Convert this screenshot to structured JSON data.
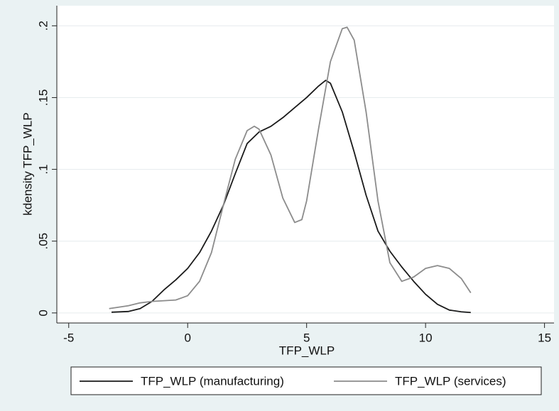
{
  "chart_data": {
    "type": "line",
    "x_label": "TFP_WLP",
    "y_label": "kdensity TFP_WLP",
    "xlim": [
      -5.5,
      15.4
    ],
    "ylim": [
      -0.007,
      0.214
    ],
    "xticks": [
      -5,
      0,
      5,
      10,
      15
    ],
    "yticks": [
      0,
      {
        "value": 0.05,
        "label": ".05"
      },
      {
        "value": 0.1,
        "label": ".1"
      },
      {
        "value": 0.15,
        "label": ".15"
      },
      {
        "value": 0.2,
        "label": ".2"
      }
    ],
    "grid": true,
    "legend": "bottom",
    "series": [
      {
        "name": "TFP_WLP (manufacturing)",
        "color": "#1a1a1a",
        "x": [
          -3.2,
          -2.5,
          -2,
          -1.5,
          -1,
          -0.5,
          0,
          0.5,
          1,
          1.5,
          2,
          2.5,
          3,
          3.5,
          4,
          4.5,
          5,
          5.5,
          5.8,
          6,
          6.5,
          7,
          7.5,
          8,
          8.5,
          9,
          9.5,
          10,
          10.5,
          11,
          11.5,
          11.9
        ],
        "values": [
          0.0005,
          0.001,
          0.003,
          0.008,
          0.016,
          0.023,
          0.031,
          0.042,
          0.057,
          0.075,
          0.097,
          0.118,
          0.126,
          0.13,
          0.136,
          0.143,
          0.15,
          0.158,
          0.162,
          0.16,
          0.14,
          0.112,
          0.082,
          0.057,
          0.043,
          0.032,
          0.022,
          0.013,
          0.006,
          0.002,
          0.0008,
          0.0003
        ]
      },
      {
        "name": "TFP_WLP (services)",
        "color": "#8c8c8c",
        "x": [
          -3.3,
          -2.5,
          -2,
          -1.5,
          -1,
          -0.5,
          0,
          0.5,
          1,
          1.5,
          2,
          2.5,
          2.8,
          3,
          3.5,
          4,
          4.5,
          4.8,
          5,
          5.5,
          6,
          6.5,
          6.7,
          7,
          7.5,
          8,
          8.5,
          9,
          9.5,
          10,
          10.5,
          11,
          11.5,
          11.9
        ],
        "values": [
          0.003,
          0.005,
          0.007,
          0.008,
          0.0085,
          0.009,
          0.012,
          0.022,
          0.042,
          0.075,
          0.107,
          0.127,
          0.13,
          0.128,
          0.11,
          0.08,
          0.063,
          0.065,
          0.078,
          0.128,
          0.175,
          0.198,
          0.199,
          0.19,
          0.14,
          0.078,
          0.035,
          0.022,
          0.025,
          0.031,
          0.033,
          0.031,
          0.024,
          0.014
        ]
      }
    ]
  }
}
